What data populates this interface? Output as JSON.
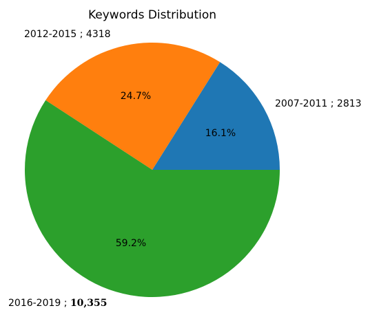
{
  "chart_data": {
    "type": "pie",
    "title": "Keywords Distribution",
    "slices": [
      {
        "label": "2007-2011 ; 2813",
        "value": 2813,
        "percent_label": "16.1%",
        "color": "#1f77b4"
      },
      {
        "label": "2012-2015 ; 4318",
        "value": 4318,
        "percent_label": "24.7%",
        "color": "#ff7f0e"
      },
      {
        "label_prefix": "2016-2019 ; ",
        "label_value": "10,355",
        "value": 10355,
        "percent_label": "59.2%",
        "color": "#2ca02c"
      }
    ],
    "start_angle": "0° (3 o'clock), counter-clockwise"
  }
}
